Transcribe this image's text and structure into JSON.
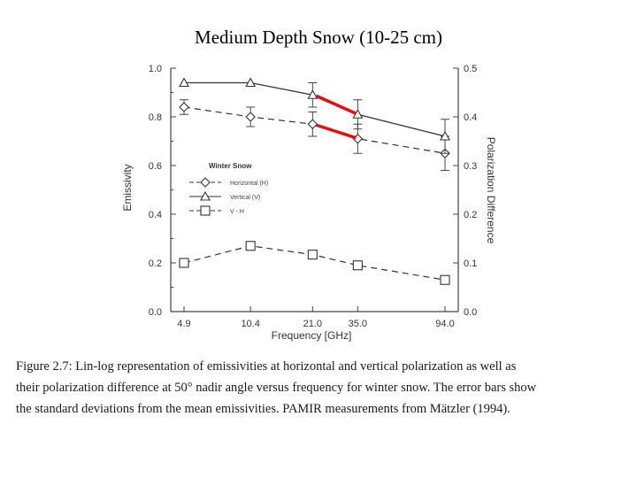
{
  "page": {
    "title": "Medium Depth Snow (10-25 cm)"
  },
  "chart_data": {
    "type": "line",
    "x": [
      4.9,
      10.4,
      21.0,
      35.0,
      94.0
    ],
    "x_tick_labels": [
      "4.9",
      "10.4",
      "21.0",
      "35.0",
      "94.0"
    ],
    "xlabel": "Frequency [GHz]",
    "ylabel": "Emissivity",
    "y2label": "Polarization Difference",
    "ylim": [
      0.0,
      1.0
    ],
    "y2lim": [
      0.0,
      0.5
    ],
    "y_tick_labels": [
      "0.0",
      "0.2",
      "0.4",
      "0.6",
      "0.8",
      "1.0"
    ],
    "y2_tick_labels": [
      "0.0",
      "0.1",
      "0.2",
      "0.3",
      "0.4",
      "0.5"
    ],
    "x_scale": "log",
    "grid": false,
    "legend_title": "Winter Snow",
    "legend_position": "middle-left",
    "series": [
      {
        "name": "Horizontal (H)",
        "axis": "left",
        "marker": "diamond",
        "line": "dashed",
        "values": [
          0.84,
          0.8,
          0.77,
          0.71,
          0.65
        ],
        "error": [
          0.03,
          0.04,
          0.05,
          0.06,
          0.07
        ]
      },
      {
        "name": "Vertical (V)",
        "axis": "left",
        "marker": "triangle",
        "line": "solid",
        "values": [
          0.94,
          0.94,
          0.89,
          0.81,
          0.72
        ],
        "error": [
          0.0,
          0.0,
          0.05,
          0.06,
          0.07
        ]
      },
      {
        "name": "V - H",
        "axis": "right",
        "marker": "square",
        "line": "dashed",
        "values": [
          0.1,
          0.135,
          0.117,
          0.095,
          0.065
        ],
        "error": [
          0,
          0,
          0,
          0,
          0
        ]
      }
    ],
    "annotation_color": "#e01010"
  },
  "caption": {
    "lines": [
      "Figure 2.7:   Lin-log representation of emissivities at horizontal and vertical polarization as well as",
      "their polarization difference at 50° nadir angle versus frequency for winter snow. The error bars show",
      "the standard deviations from the mean emissivities. PAMIR measurements from Mätzler (1994)."
    ]
  }
}
